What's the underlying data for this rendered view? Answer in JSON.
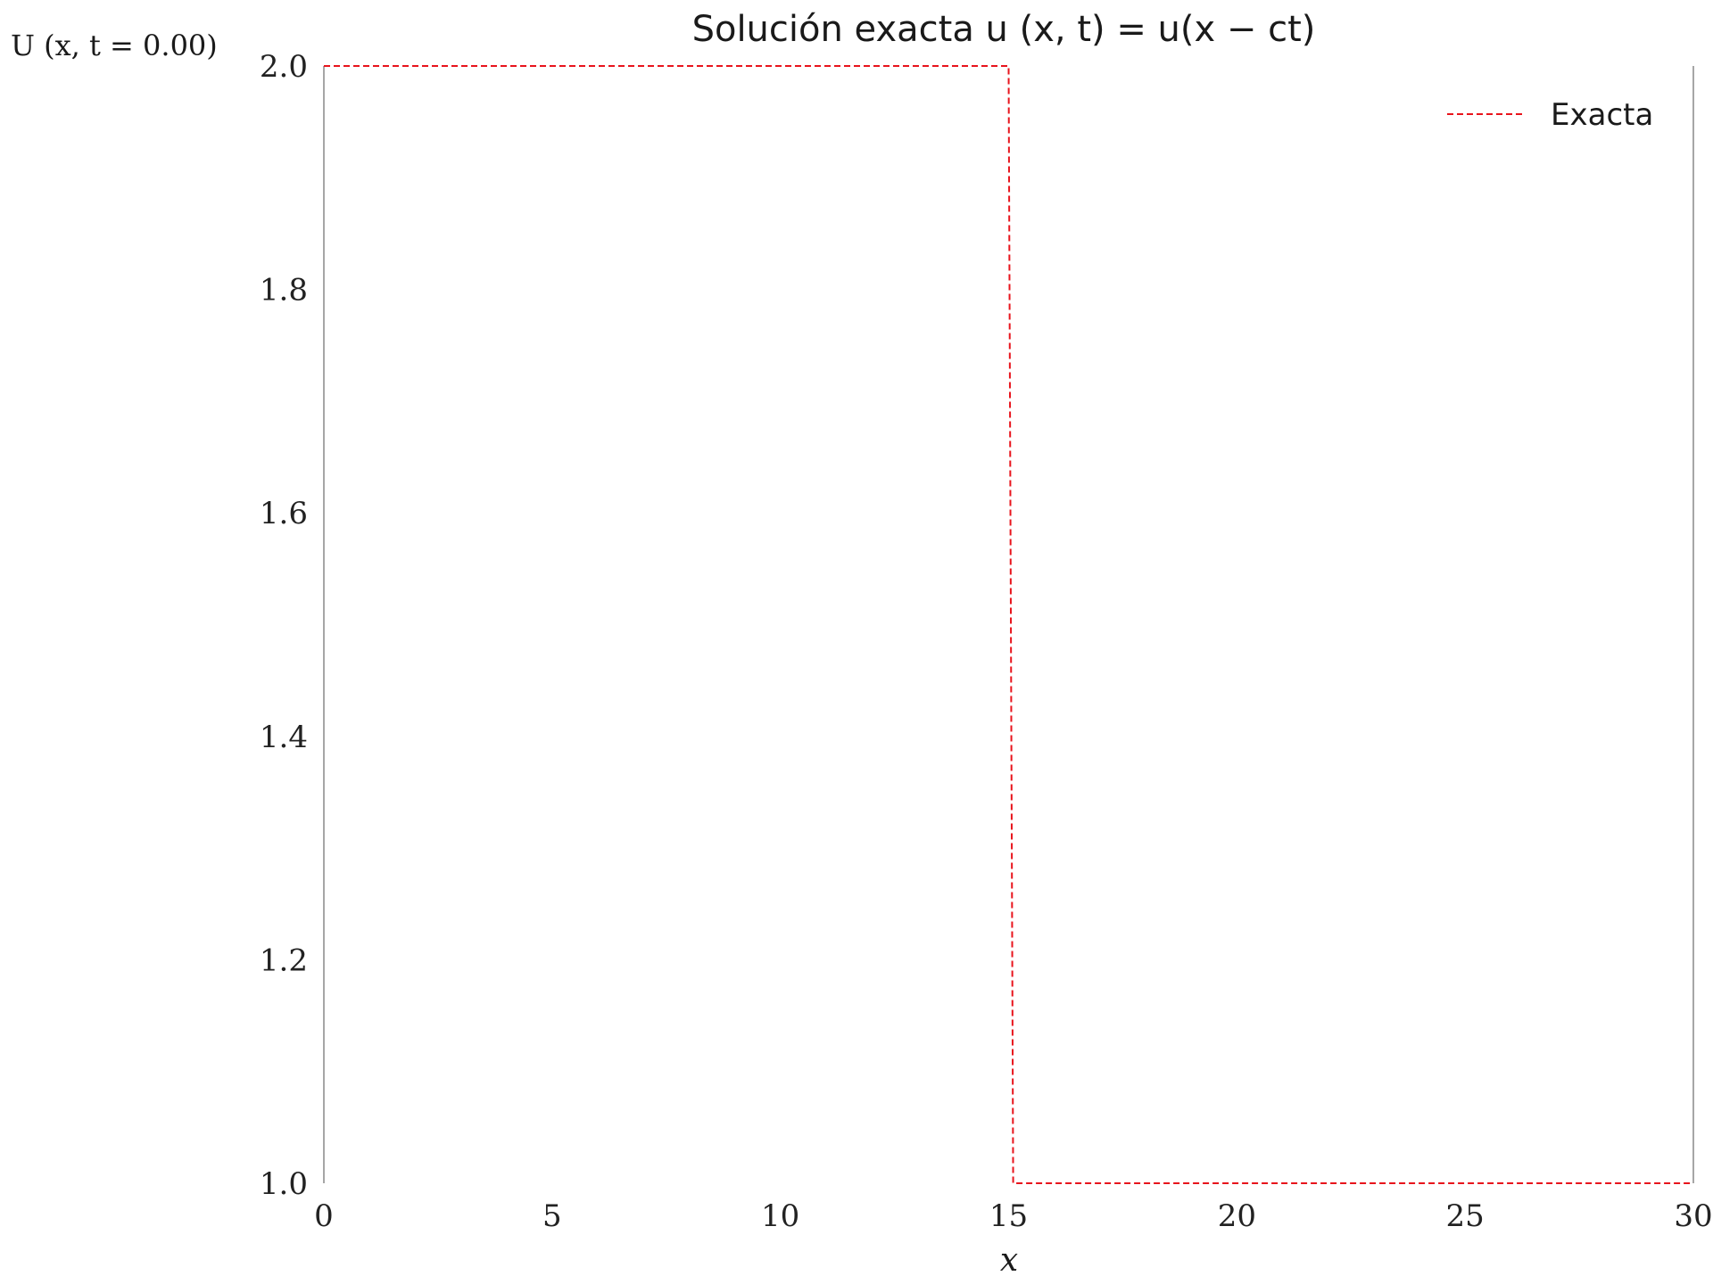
{
  "chart_data": {
    "type": "line",
    "title": "Solución exacta u (x, t) = u(x − ct)",
    "xlabel": "x",
    "ylabel": "U (x, t = 0.00)",
    "xlim": [
      0,
      30
    ],
    "ylim": [
      1.0,
      2.0
    ],
    "x_ticks": [
      "0",
      "5",
      "10",
      "15",
      "20",
      "25",
      "30"
    ],
    "y_ticks": [
      "1.0",
      "1.2",
      "1.4",
      "1.6",
      "1.8",
      "2.0"
    ],
    "grid": false,
    "legend_position": "top-right",
    "series": [
      {
        "name": "Exacta",
        "color": "#e8141c",
        "line_style": "dashed",
        "x": [
          0,
          15,
          15.1,
          30
        ],
        "y": [
          2.0,
          2.0,
          1.0,
          1.0
        ]
      }
    ]
  }
}
